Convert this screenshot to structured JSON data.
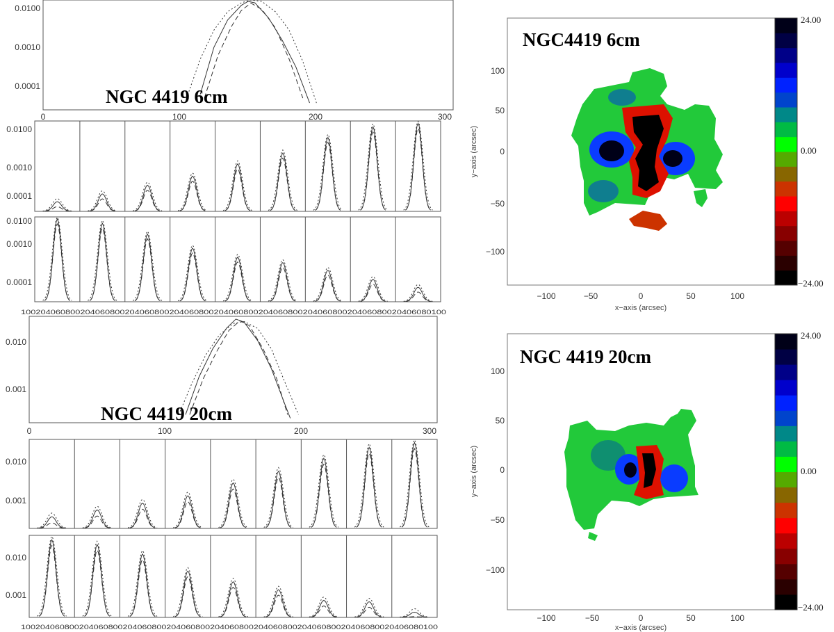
{
  "chart_data": [
    {
      "type": "line",
      "id": "profile-6cm",
      "title": "NGC 4419 6cm",
      "xlim": [
        0,
        300
      ],
      "x_ticks": [
        "0",
        "100",
        "200",
        "300"
      ],
      "y_scale": "log",
      "ylim": [
        2e-05,
        0.013
      ],
      "y_ticks": [
        "0.0001",
        "0.0010",
        "0.0100"
      ],
      "series": [
        {
          "style": "solid",
          "x": [
            115,
            125,
            135,
            145,
            150,
            155,
            165,
            175,
            185,
            195
          ],
          "values": [
            5e-05,
            0.0008,
            0.004,
            0.0095,
            0.012,
            0.011,
            0.0045,
            0.0012,
            0.00025,
            3e-05
          ]
        },
        {
          "style": "dashed",
          "x": [
            118,
            128,
            138,
            145,
            152,
            160,
            170,
            180,
            190
          ],
          "values": [
            4e-05,
            0.0005,
            0.0028,
            0.007,
            0.0108,
            0.0075,
            0.0025,
            0.0004,
            4e-05
          ]
        },
        {
          "style": "dotted",
          "x": [
            105,
            115,
            125,
            135,
            145,
            152,
            160,
            170,
            180,
            190,
            200
          ],
          "values": [
            4e-05,
            0.0004,
            0.0022,
            0.0065,
            0.011,
            0.013,
            0.012,
            0.0065,
            0.0022,
            0.00035,
            3e-05
          ]
        }
      ]
    },
    {
      "type": "line",
      "id": "panels-6cm-a",
      "panels": 9,
      "y_scale": "log",
      "ylim": [
        2e-05,
        0.013
      ],
      "y_ticks": [
        "0.0001",
        "0.0010",
        "0.0100"
      ],
      "peaks": [
        4e-05,
        7e-05,
        0.00013,
        0.00025,
        0.0006,
        0.0013,
        0.004,
        0.0085,
        0.011
      ]
    },
    {
      "type": "line",
      "id": "panels-6cm-b",
      "panels": 9,
      "y_scale": "log",
      "ylim": [
        2e-05,
        0.013
      ],
      "y_ticks": [
        "0.0001",
        "0.0010",
        "0.0100"
      ],
      "x_ticks_text": "10020406080020406080020406080020406080020406080020406080020406080020406080020406080100",
      "peaks": [
        0.011,
        0.008,
        0.0035,
        0.0012,
        0.0006,
        0.0004,
        0.00022,
        0.00011,
        6e-05
      ]
    },
    {
      "type": "line",
      "id": "profile-20cm",
      "title": "NGC 4419 20cm",
      "xlim": [
        0,
        300
      ],
      "x_ticks": [
        "0",
        "100",
        "200",
        "300"
      ],
      "y_scale": "log",
      "ylim": [
        0.0002,
        0.04
      ],
      "y_ticks": [
        "0.001",
        "0.010"
      ],
      "series": [
        {
          "style": "solid",
          "x": [
            115,
            125,
            135,
            145,
            152,
            158,
            168,
            178,
            188,
            192
          ],
          "values": [
            0.0003,
            0.002,
            0.008,
            0.022,
            0.035,
            0.03,
            0.012,
            0.003,
            0.0005,
            0.00025
          ]
        },
        {
          "style": "dashed",
          "x": [
            118,
            128,
            138,
            147,
            155,
            162,
            172,
            182,
            190
          ],
          "values": [
            0.0003,
            0.0018,
            0.007,
            0.02,
            0.032,
            0.025,
            0.008,
            0.0018,
            0.0003
          ]
        },
        {
          "style": "dotted",
          "x": [
            110,
            120,
            130,
            140,
            150,
            158,
            168,
            178,
            188,
            198
          ],
          "values": [
            0.0003,
            0.0015,
            0.006,
            0.016,
            0.028,
            0.031,
            0.022,
            0.008,
            0.0015,
            0.0003
          ]
        }
      ]
    },
    {
      "type": "line",
      "id": "panels-20cm-a",
      "panels": 9,
      "y_scale": "log",
      "ylim": [
        0.0002,
        0.04
      ],
      "y_ticks": [
        "0.001",
        "0.010"
      ],
      "peaks": [
        0.0004,
        0.0006,
        0.0009,
        0.0014,
        0.003,
        0.006,
        0.013,
        0.025,
        0.033
      ]
    },
    {
      "type": "line",
      "id": "panels-20cm-b",
      "panels": 9,
      "y_scale": "log",
      "ylim": [
        0.0002,
        0.04
      ],
      "y_ticks": [
        "0.001",
        "0.010"
      ],
      "x_ticks_text": "10020406080020406080020406080020406080020406080020406080020406080020406080020406080100",
      "peaks": [
        0.03,
        0.022,
        0.012,
        0.004,
        0.002,
        0.0012,
        0.0006,
        0.00055,
        0.00028
      ]
    },
    {
      "type": "heatmap",
      "id": "map-6cm",
      "title": "NGC4419 6cm",
      "xlabel": "x−axis (arcsec)",
      "ylabel": "y−axis (arcsec)",
      "xlim": [
        -135,
        135
      ],
      "ylim": [
        -135,
        135
      ],
      "x_ticks": [
        "−100",
        "−50",
        "0",
        "50",
        "100"
      ],
      "y_ticks": [
        "100",
        "50",
        "0",
        "−50",
        "−100"
      ],
      "colorbar_min": "−24.00",
      "colorbar_mid": "0.00",
      "colorbar_max": "24.00"
    },
    {
      "type": "heatmap",
      "id": "map-20cm",
      "title": "NGC 4419 20cm",
      "xlabel": "x−axis (arcsec)",
      "ylabel": "y−axis (arcsec)",
      "xlim": [
        -135,
        135
      ],
      "ylim": [
        -135,
        135
      ],
      "x_ticks": [
        "−100",
        "−50",
        "0",
        "50",
        "100"
      ],
      "y_ticks": [
        "100",
        "50",
        "0",
        "−50",
        "−100"
      ],
      "colorbar_min": "−24.00",
      "colorbar_mid": "0.00",
      "colorbar_max": "24.00"
    }
  ],
  "colorbar_colors": [
    "#000000",
    "#2a0000",
    "#550000",
    "#880000",
    "#bb0000",
    "#ff0000",
    "#cc3300",
    "#886600",
    "#55aa00",
    "#00ff00",
    "#00bb44",
    "#008888",
    "#0044cc",
    "#0022ff",
    "#0000cc",
    "#000088",
    "#000044",
    "#000018"
  ]
}
